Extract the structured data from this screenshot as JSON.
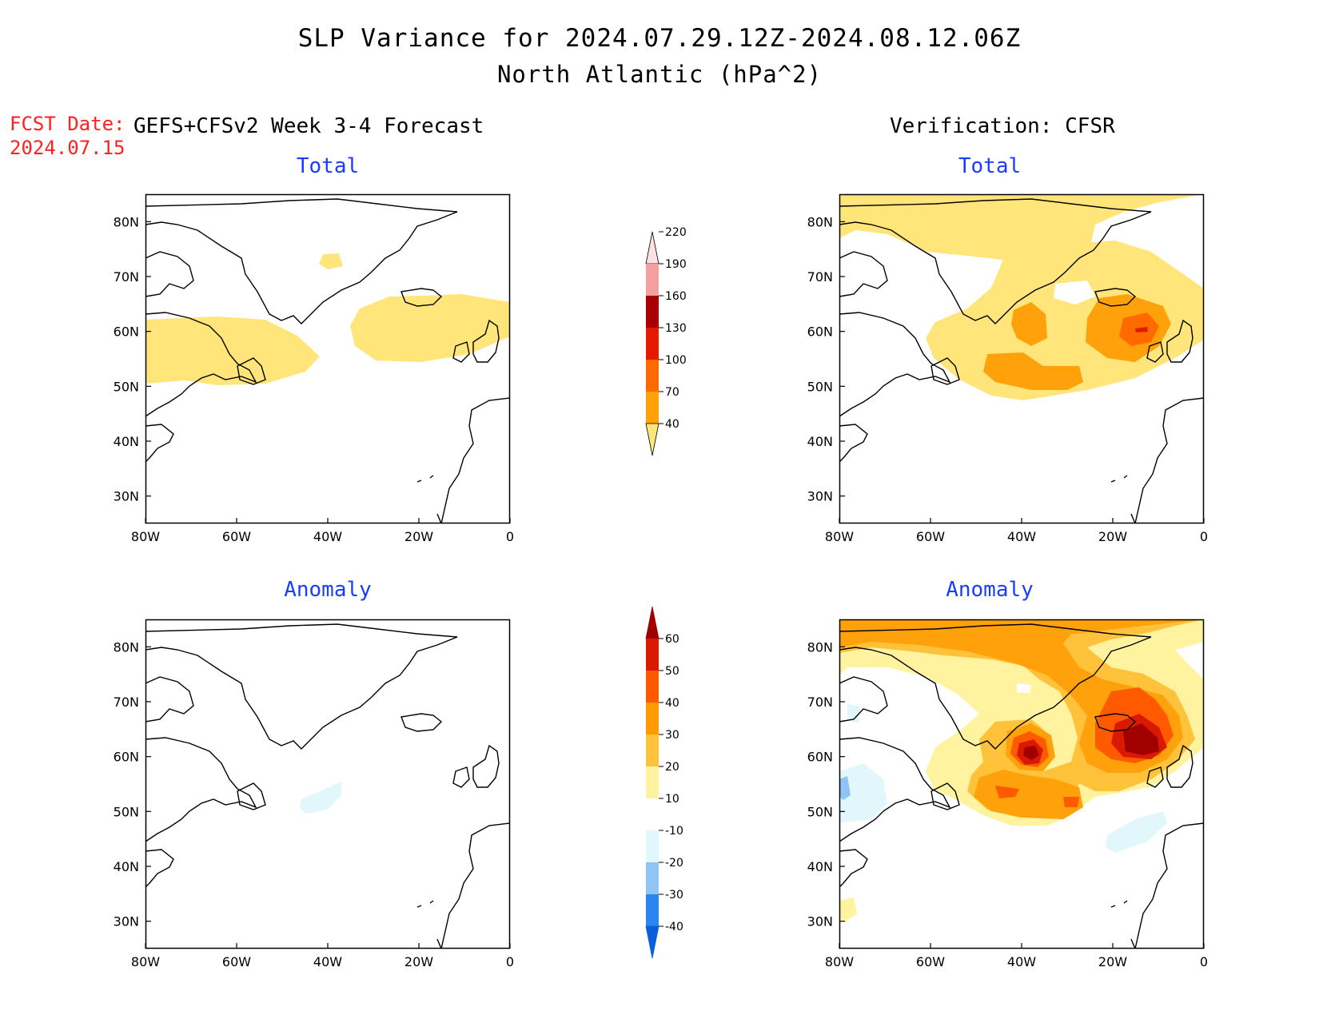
{
  "title": {
    "line1": "SLP Variance for 2024.07.29.12Z-2024.08.12.06Z",
    "line2": "North Atlantic (hPa^2)"
  },
  "fcst": {
    "label": "FCST Date:",
    "date": "2024.07.15"
  },
  "columns": {
    "left": "GEFS+CFSv2 Week 3-4 Forecast",
    "right": "Verification: CFSR"
  },
  "panels": {
    "top_left_title": "Total",
    "top_right_title": "Total",
    "bottom_left_title": "Anomaly",
    "bottom_right_title": "Anomaly"
  },
  "axes": {
    "x_ticks": [
      "80W",
      "60W",
      "40W",
      "20W",
      "0"
    ],
    "y_ticks": [
      "30N",
      "40N",
      "50N",
      "60N",
      "70N",
      "80N"
    ],
    "lon_range": [
      -80,
      0
    ],
    "lat_range": [
      25,
      85
    ]
  },
  "colorbar_total": {
    "levels": [
      "40",
      "70",
      "100",
      "130",
      "160",
      "190",
      "220"
    ],
    "colors": [
      "#ffe57a",
      "#ffa10a",
      "#ff6a00",
      "#e31a00",
      "#a80000",
      "#f3a0a0",
      "#fde0e0"
    ]
  },
  "colorbar_anomaly": {
    "levels": [
      "-40",
      "-30",
      "-20",
      "-10",
      "10",
      "20",
      "30",
      "40",
      "50",
      "60"
    ],
    "colors": [
      "#0a5fdc",
      "#2a85f0",
      "#8fc4f5",
      "#e2f7fb",
      "#ffffff",
      "#fff3a0",
      "#ffc23a",
      "#ff9a00",
      "#ff5a00",
      "#d91a00",
      "#a00000"
    ]
  }
}
